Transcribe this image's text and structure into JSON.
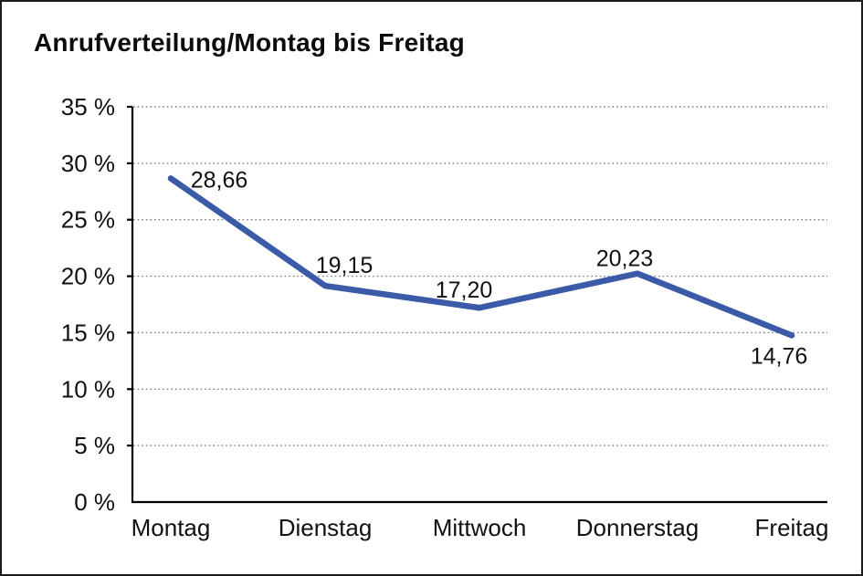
{
  "chart_data": {
    "type": "line",
    "title": "Anrufverteilung/Montag bis Freitag",
    "categories": [
      "Montag",
      "Dienstag",
      "Mittwoch",
      "Donnerstag",
      "Freitag"
    ],
    "values": [
      28.66,
      19.15,
      17.2,
      20.23,
      14.76
    ],
    "point_labels": [
      "28,66",
      "19,15",
      "17,20",
      "20,23",
      "14,76"
    ],
    "ylim": [
      0,
      35
    ],
    "ytick_step": 5,
    "ytick_labels": [
      "0 %",
      "5 %",
      "10 %",
      "15 %",
      "20 %",
      "25 %",
      "30 %",
      "35 %"
    ],
    "xlabel": "",
    "ylabel": "",
    "grid": "horizontal-dotted",
    "legend": "none",
    "line_color": "#3B5BA8"
  },
  "colors": {
    "line": "#3B5BA8",
    "grid": "#7d7d7d",
    "axis": "#000000",
    "text": "#111111",
    "background": "#ffffff",
    "border": "#1c1c1c"
  }
}
